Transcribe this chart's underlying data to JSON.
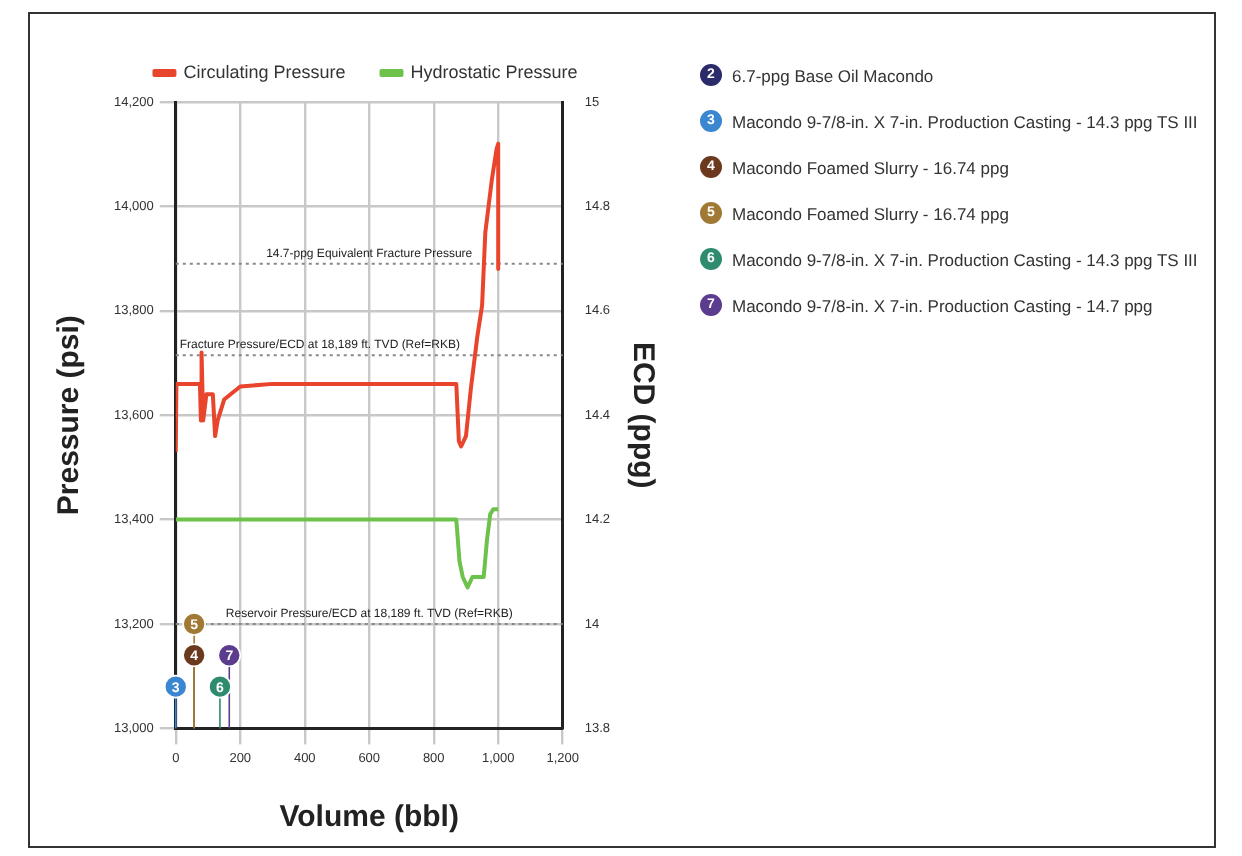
{
  "chart_data": {
    "type": "line",
    "xlabel": "Volume (bbl)",
    "ylabel": "Pressure (psi)",
    "y2label": "ECD (ppg)",
    "xlim": [
      0,
      1200
    ],
    "xticks": [
      {
        "value": 0,
        "label": "0"
      },
      {
        "value": 200,
        "label": "200"
      },
      {
        "value": 400,
        "label": "400"
      },
      {
        "value": 600,
        "label": "600"
      },
      {
        "value": 800,
        "label": "800"
      },
      {
        "value": 1000,
        "label": "1,000"
      },
      {
        "value": 1200,
        "label": "1,200"
      }
    ],
    "ylim": [
      13000,
      14200
    ],
    "yticks": [
      {
        "value": 13000,
        "label": "13,000"
      },
      {
        "value": 13200,
        "label": "13,200"
      },
      {
        "value": 13400,
        "label": "13,400"
      },
      {
        "value": 13600,
        "label": "13,600"
      },
      {
        "value": 13800,
        "label": "13,800"
      },
      {
        "value": 14000,
        "label": "14,000"
      },
      {
        "value": 14200,
        "label": "14,200"
      }
    ],
    "y2lim": [
      13.8,
      15.0
    ],
    "y2ticks": [
      13.8,
      14.0,
      14.2,
      14.4,
      14.6,
      14.8,
      15.0
    ],
    "grid": true,
    "legend": "top",
    "line_style": "solid",
    "series": [
      {
        "name": "Circulating Pressure",
        "color": "#e8452c",
        "x": [
          0,
          2,
          75,
          78,
          80,
          85,
          95,
          115,
          122,
          130,
          150,
          200,
          300,
          870,
          878,
          885,
          900,
          915,
          935,
          950,
          960,
          970,
          980,
          995,
          1000,
          1000
        ],
        "values": [
          13530,
          13660,
          13660,
          13590,
          13720,
          13590,
          13640,
          13640,
          13560,
          13590,
          13630,
          13655,
          13660,
          13660,
          13550,
          13540,
          13560,
          13650,
          13750,
          13810,
          13950,
          14000,
          14050,
          14110,
          14120,
          13880
        ]
      },
      {
        "name": "Hydrostatic Pressure",
        "color": "#6cc24a",
        "x": [
          0,
          870,
          880,
          890,
          905,
          920,
          955,
          965,
          975,
          985,
          1000
        ],
        "values": [
          13400,
          13400,
          13320,
          13290,
          13270,
          13290,
          13290,
          13360,
          13410,
          13420,
          13420
        ]
      },
      {
        "name": "6.7-ppg Base Oil Macondo",
        "type": "lollipop",
        "color": "#2b2a6b",
        "marker": "circle",
        "values": [
          null
        ]
      },
      {
        "name": "Macondo 9-7/8-in. X 7-in. Production Casting - 14.3 ppg TS III",
        "type": "lollipop",
        "color": "#3a86d0",
        "marker": "circle",
        "x": [
          0
        ],
        "values": [
          13080
        ]
      },
      {
        "name": "Macondo Foamed Slurry - 16.74 ppg",
        "type": "lollipop",
        "color": "#6b3a1e",
        "marker": "circle",
        "x": [
          57
        ],
        "values": [
          13140
        ]
      },
      {
        "name": "Macondo Foamed Slurry - 16.74 ppg",
        "type": "lollipop",
        "color": "#a07a35",
        "marker": "circle",
        "x": [
          57
        ],
        "values": [
          13200
        ]
      },
      {
        "name": "Macondo 9-7/8-in. X 7-in. Production Casting - 14.3 ppg TS III",
        "type": "lollipop",
        "color": "#2e8b6e",
        "marker": "circle",
        "x": [
          137
        ],
        "values": [
          13080
        ]
      },
      {
        "name": "Macondo 9-7/8-in. X 7-in. Production Casting - 14.7 ppg",
        "type": "lollipop",
        "color": "#5b3c8e",
        "marker": "circle",
        "x": [
          166
        ],
        "values": [
          13140
        ]
      }
    ],
    "annotations": [
      "2",
      "3",
      "4",
      "5",
      "6",
      "7"
    ],
    "ref_lines": [
      {
        "axis": "y",
        "value": 13890,
        "label": "14.7-ppg Equivalent Fracture Pressure",
        "line_style": "dotted",
        "color": "#888888"
      },
      {
        "axis": "y",
        "value": 13715,
        "label": "Fracture Pressure/ECD at 18,189 ft. TVD (Ref=RKB)",
        "line_style": "dotted",
        "color": "#888888"
      },
      {
        "axis": "y",
        "value": 13200,
        "label": "Reservoir Pressure/ECD at 18,189 ft. TVD (Ref=RKB)",
        "line_style": "dotted",
        "color": "#888888"
      }
    ]
  }
}
